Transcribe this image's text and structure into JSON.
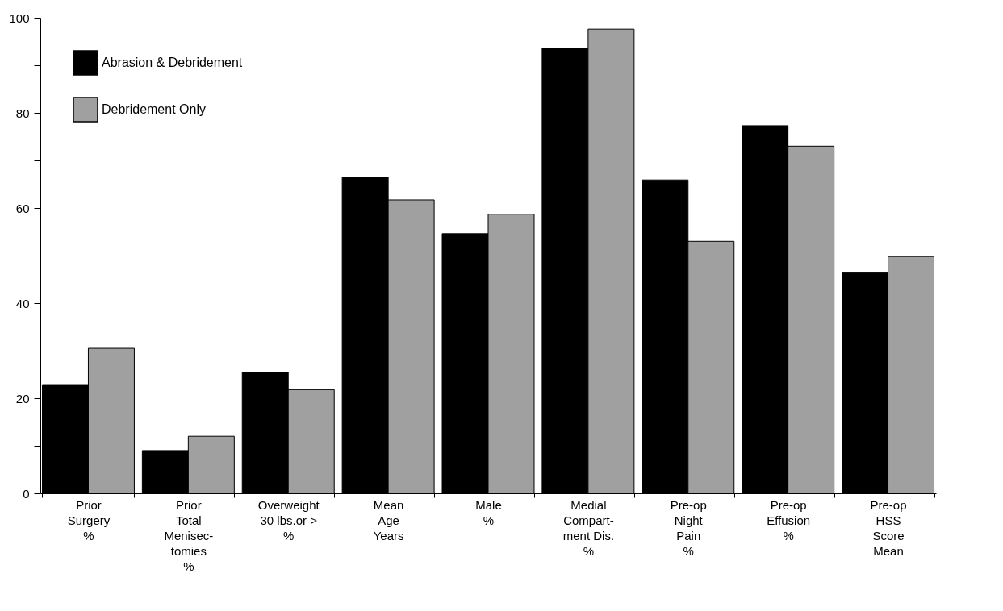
{
  "chart_data": {
    "type": "bar",
    "categories": [
      "Prior\nSurgery\n%",
      "Prior\nTotal\nMenisec-\ntomies\n%",
      "Overweight\n30 lbs.or >\n%",
      "Mean\nAge\nYears",
      "Male\n%",
      "Medial\nCompart-\nment  Dis.\n%",
      "Pre-op\nNight\nPain\n%",
      "Pre-op\nEffusion\n%",
      "Pre-op\nHSS\nScore\nMean"
    ],
    "series": [
      {
        "name": "Abrasion & Debridement",
        "color": "#000000",
        "values": [
          22.7,
          9,
          25.5,
          66.5,
          54.6,
          93.6,
          65.9,
          77.3,
          46.4
        ]
      },
      {
        "name": "Debridement Only",
        "color": "#a0a0a0",
        "values": [
          30.5,
          12,
          21.8,
          61.7,
          58.7,
          97.6,
          53,
          73,
          49.8
        ]
      }
    ],
    "ylim": [
      0,
      100
    ],
    "yticks": [
      0,
      {
        "value": 10,
        "label": null
      },
      20,
      {
        "value": 30,
        "label": null
      },
      40,
      {
        "value": 50,
        "label": null
      },
      60,
      {
        "value": 70,
        "label": null
      },
      80,
      {
        "value": 90,
        "label": null
      },
      100
    ],
    "legend": "top left"
  }
}
